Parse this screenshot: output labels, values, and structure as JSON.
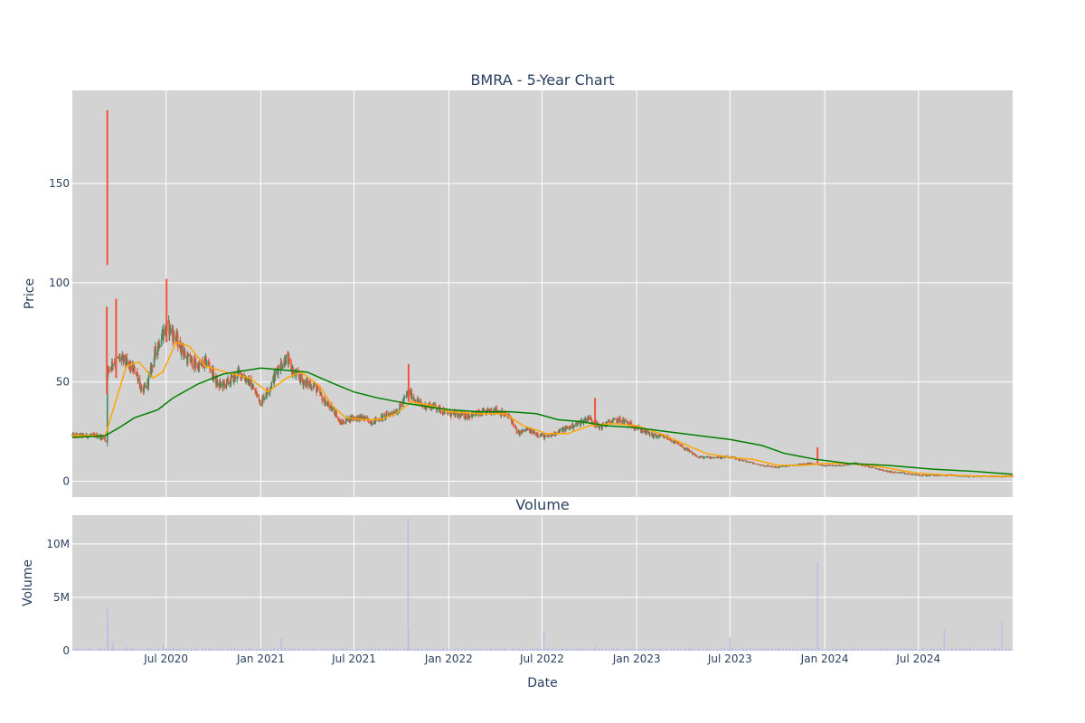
{
  "chart_data": [
    {
      "type": "candlestick",
      "title": "BMRA - 5-Year Chart",
      "ylabel": "Price",
      "ylim": [
        -8,
        197
      ],
      "yticks": [
        0,
        50,
        100,
        150
      ],
      "xlim": [
        "2020-01-01",
        "2024-12-31"
      ],
      "grid": true,
      "colors": {
        "increasing": "#3d8b63",
        "decreasing": "#ef553b",
        "ma_short": "#ffa500",
        "ma_long": "#008000",
        "plot_bg": "#d3d3d3"
      },
      "price_path": [
        [
          "2020-01-01",
          23
        ],
        [
          "2020-02-15",
          23
        ],
        [
          "2020-03-03",
          22
        ],
        [
          "2020-03-06",
          20
        ],
        [
          "2020-03-09",
          55
        ],
        [
          "2020-03-20",
          60
        ],
        [
          "2020-04-05",
          62
        ],
        [
          "2020-04-20",
          58
        ],
        [
          "2020-05-05",
          55
        ],
        [
          "2020-05-15",
          45
        ],
        [
          "2020-05-25",
          48
        ],
        [
          "2020-06-10",
          65
        ],
        [
          "2020-06-25",
          75
        ],
        [
          "2020-07-05",
          78
        ],
        [
          "2020-07-20",
          72
        ],
        [
          "2020-08-10",
          62
        ],
        [
          "2020-09-01",
          58
        ],
        [
          "2020-09-20",
          60
        ],
        [
          "2020-10-10",
          48
        ],
        [
          "2020-11-01",
          50
        ],
        [
          "2020-11-20",
          55
        ],
        [
          "2020-12-10",
          50
        ],
        [
          "2021-01-01",
          40
        ],
        [
          "2021-01-20",
          48
        ],
        [
          "2021-02-05",
          58
        ],
        [
          "2021-02-20",
          62
        ],
        [
          "2021-03-05",
          55
        ],
        [
          "2021-03-25",
          50
        ],
        [
          "2021-04-15",
          48
        ],
        [
          "2021-05-05",
          40
        ],
        [
          "2021-05-25",
          35
        ],
        [
          "2021-06-05",
          29
        ],
        [
          "2021-06-25",
          32
        ],
        [
          "2021-07-15",
          32
        ],
        [
          "2021-08-05",
          30
        ],
        [
          "2021-09-01",
          33
        ],
        [
          "2021-09-25",
          36
        ],
        [
          "2021-10-15",
          45
        ],
        [
          "2021-10-25",
          42
        ],
        [
          "2021-11-10",
          38
        ],
        [
          "2021-12-01",
          38
        ],
        [
          "2022-01-01",
          34
        ],
        [
          "2022-02-01",
          33
        ],
        [
          "2022-03-01",
          34
        ],
        [
          "2022-04-01",
          36
        ],
        [
          "2022-05-01",
          32
        ],
        [
          "2022-05-15",
          24
        ],
        [
          "2022-06-01",
          26
        ],
        [
          "2022-06-20",
          24
        ],
        [
          "2022-07-10",
          22
        ],
        [
          "2022-08-01",
          25
        ],
        [
          "2022-09-01",
          28
        ],
        [
          "2022-10-01",
          32
        ],
        [
          "2022-10-20",
          27
        ],
        [
          "2022-11-10",
          30
        ],
        [
          "2022-12-01",
          31
        ],
        [
          "2023-01-01",
          27
        ],
        [
          "2023-02-01",
          23
        ],
        [
          "2023-03-01",
          22
        ],
        [
          "2023-04-01",
          17
        ],
        [
          "2023-05-01",
          12
        ],
        [
          "2023-06-01",
          12
        ],
        [
          "2023-07-01",
          12
        ],
        [
          "2023-08-01",
          10
        ],
        [
          "2023-09-01",
          8
        ],
        [
          "2023-10-01",
          7
        ],
        [
          "2023-11-01",
          8
        ],
        [
          "2023-12-01",
          9
        ],
        [
          "2024-01-01",
          8
        ],
        [
          "2024-02-01",
          8
        ],
        [
          "2024-03-01",
          9
        ],
        [
          "2024-04-01",
          7
        ],
        [
          "2024-05-01",
          5
        ],
        [
          "2024-06-01",
          4
        ],
        [
          "2024-07-01",
          3
        ],
        [
          "2024-08-01",
          3
        ],
        [
          "2024-09-01",
          3
        ],
        [
          "2024-10-01",
          2.5
        ],
        [
          "2024-11-01",
          2.5
        ],
        [
          "2024-12-31",
          2.5
        ]
      ],
      "spikes": [
        {
          "date": "2020-03-09",
          "low": 109,
          "high": 187
        },
        {
          "date": "2020-03-08",
          "low": 44,
          "high": 88
        },
        {
          "date": "2020-03-26",
          "low": 52,
          "high": 92
        },
        {
          "date": "2020-07-02",
          "low": 70,
          "high": 102
        },
        {
          "date": "2021-10-15",
          "low": 40,
          "high": 59
        },
        {
          "date": "2022-10-12",
          "low": 27,
          "high": 42
        },
        {
          "date": "2023-12-18",
          "low": 9,
          "high": 17
        }
      ],
      "ma_short": [
        [
          "2020-01-01",
          23
        ],
        [
          "2020-03-05",
          23
        ],
        [
          "2020-03-25",
          40
        ],
        [
          "2020-04-15",
          58
        ],
        [
          "2020-05-10",
          60
        ],
        [
          "2020-06-05",
          52
        ],
        [
          "2020-06-25",
          55
        ],
        [
          "2020-07-20",
          70
        ],
        [
          "2020-08-15",
          68
        ],
        [
          "2020-09-15",
          58
        ],
        [
          "2020-10-25",
          55
        ],
        [
          "2020-12-10",
          52
        ],
        [
          "2021-01-15",
          45
        ],
        [
          "2021-02-20",
          52
        ],
        [
          "2021-03-20",
          55
        ],
        [
          "2021-04-25",
          48
        ],
        [
          "2021-05-20",
          38
        ],
        [
          "2021-06-15",
          32
        ],
        [
          "2021-07-20",
          31
        ],
        [
          "2021-08-20",
          31
        ],
        [
          "2021-09-20",
          34
        ],
        [
          "2021-10-20",
          40
        ],
        [
          "2021-11-30",
          38
        ],
        [
          "2022-01-01",
          35
        ],
        [
          "2022-03-01",
          34
        ],
        [
          "2022-04-20",
          34
        ],
        [
          "2022-05-25",
          28
        ],
        [
          "2022-07-10",
          24
        ],
        [
          "2022-08-20",
          24
        ],
        [
          "2022-10-01",
          28
        ],
        [
          "2022-11-15",
          29
        ],
        [
          "2023-01-01",
          28
        ],
        [
          "2023-02-15",
          24
        ],
        [
          "2023-04-01",
          19
        ],
        [
          "2023-05-15",
          14
        ],
        [
          "2023-07-01",
          12
        ],
        [
          "2023-08-15",
          11
        ],
        [
          "2023-10-01",
          8
        ],
        [
          "2023-11-20",
          8
        ],
        [
          "2024-01-01",
          9
        ],
        [
          "2024-02-15",
          9
        ],
        [
          "2024-04-01",
          8
        ],
        [
          "2024-05-15",
          6
        ],
        [
          "2024-07-01",
          4
        ],
        [
          "2024-09-01",
          3
        ],
        [
          "2024-11-01",
          2.5
        ],
        [
          "2024-12-31",
          2.5
        ]
      ],
      "ma_long": [
        [
          "2020-01-01",
          22
        ],
        [
          "2020-03-05",
          23
        ],
        [
          "2020-04-01",
          27
        ],
        [
          "2020-05-01",
          32
        ],
        [
          "2020-06-15",
          36
        ],
        [
          "2020-07-15",
          42
        ],
        [
          "2020-09-01",
          49
        ],
        [
          "2020-10-20",
          54
        ],
        [
          "2021-01-01",
          57
        ],
        [
          "2021-02-15",
          56
        ],
        [
          "2021-04-01",
          55
        ],
        [
          "2021-05-15",
          50
        ],
        [
          "2021-07-01",
          45
        ],
        [
          "2021-08-15",
          42
        ],
        [
          "2021-10-15",
          39
        ],
        [
          "2022-01-01",
          36
        ],
        [
          "2022-03-01",
          35
        ],
        [
          "2022-05-01",
          35
        ],
        [
          "2022-06-20",
          34
        ],
        [
          "2022-08-01",
          31
        ],
        [
          "2022-09-15",
          30
        ],
        [
          "2022-11-01",
          28
        ],
        [
          "2023-01-01",
          27
        ],
        [
          "2023-03-01",
          25
        ],
        [
          "2023-05-01",
          23
        ],
        [
          "2023-07-01",
          21
        ],
        [
          "2023-09-01",
          18
        ],
        [
          "2023-10-15",
          14
        ],
        [
          "2023-12-15",
          11
        ],
        [
          "2024-02-15",
          9
        ],
        [
          "2024-05-01",
          8
        ],
        [
          "2024-08-01",
          6
        ],
        [
          "2024-10-15",
          5
        ],
        [
          "2024-12-31",
          3.5
        ]
      ]
    },
    {
      "type": "bar",
      "title": "Volume",
      "xlabel": "Date",
      "ylabel": "Volume",
      "ylim": [
        0,
        12700000
      ],
      "yticks": [
        0,
        5000000,
        10000000
      ],
      "ytick_labels": [
        "0",
        "5M",
        "10M"
      ],
      "xticks": [
        "2020-07-01",
        "2021-01-01",
        "2021-07-01",
        "2022-01-01",
        "2022-07-01",
        "2023-01-01",
        "2023-07-01",
        "2024-01-01",
        "2024-07-01"
      ],
      "xtick_labels": [
        "Jul 2020",
        "Jan 2021",
        "Jul 2021",
        "Jan 2022",
        "Jul 2022",
        "Jan 2023",
        "Jul 2023",
        "Jan 2024",
        "Jul 2024"
      ],
      "grid": true,
      "colors": {
        "bar": "#b9b9e8",
        "plot_bg": "#d3d3d3"
      },
      "volume_spikes": [
        [
          "2020-03-09",
          4000000
        ],
        [
          "2020-03-10",
          2500000
        ],
        [
          "2020-03-20",
          800000
        ],
        [
          "2020-04-15",
          400000
        ],
        [
          "2020-06-25",
          600000
        ],
        [
          "2020-07-15",
          300000
        ],
        [
          "2021-02-10",
          1200000
        ],
        [
          "2021-10-14",
          12400000
        ],
        [
          "2021-10-15",
          2000000
        ],
        [
          "2022-07-05",
          1800000
        ],
        [
          "2022-10-12",
          400000
        ],
        [
          "2023-07-01",
          1300000
        ],
        [
          "2023-12-18",
          8300000
        ],
        [
          "2024-08-20",
          2000000
        ],
        [
          "2024-12-10",
          2700000
        ]
      ],
      "volume_baseline": 150000
    }
  ]
}
